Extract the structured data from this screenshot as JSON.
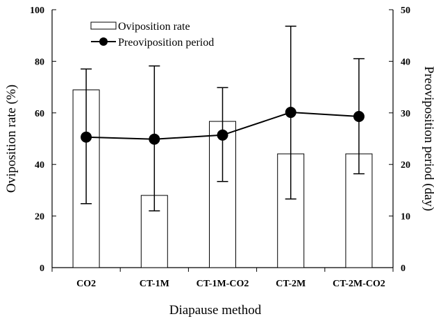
{
  "chart_data": {
    "type": "bar",
    "xlabel": "Diapause method",
    "categories": [
      "CO2",
      "CT-1M",
      "CT-1M-CO2",
      "CT-2M",
      "CT-2M-CO2"
    ],
    "y_left": {
      "label": "Oviposition rate (%)",
      "ylim": [
        0,
        100
      ],
      "ticks": [
        "0",
        "20",
        "40",
        "60",
        "80",
        "100"
      ]
    },
    "y_right": {
      "label": "Preoviposition period (day)",
      "ylim": [
        0,
        50
      ],
      "ticks": [
        "0",
        "10",
        "20",
        "30",
        "40",
        "50"
      ]
    },
    "series": [
      {
        "name": "Oviposition rate",
        "type": "bar",
        "axis": "left",
        "values": [
          68.9,
          28.0,
          56.7,
          44.1,
          44.1
        ]
      },
      {
        "name": "Preoviposition period",
        "type": "line",
        "axis": "right",
        "values": [
          25.3,
          24.9,
          25.7,
          30.1,
          29.3
        ],
        "error_low": [
          12.4,
          11.0,
          16.7,
          13.3,
          18.2
        ],
        "error_high": [
          38.5,
          39.1,
          34.9,
          46.8,
          40.5
        ]
      }
    ],
    "legend": {
      "placement": "top-center",
      "items": [
        "Oviposition rate",
        "Preoviposition period"
      ]
    },
    "grid": false
  }
}
